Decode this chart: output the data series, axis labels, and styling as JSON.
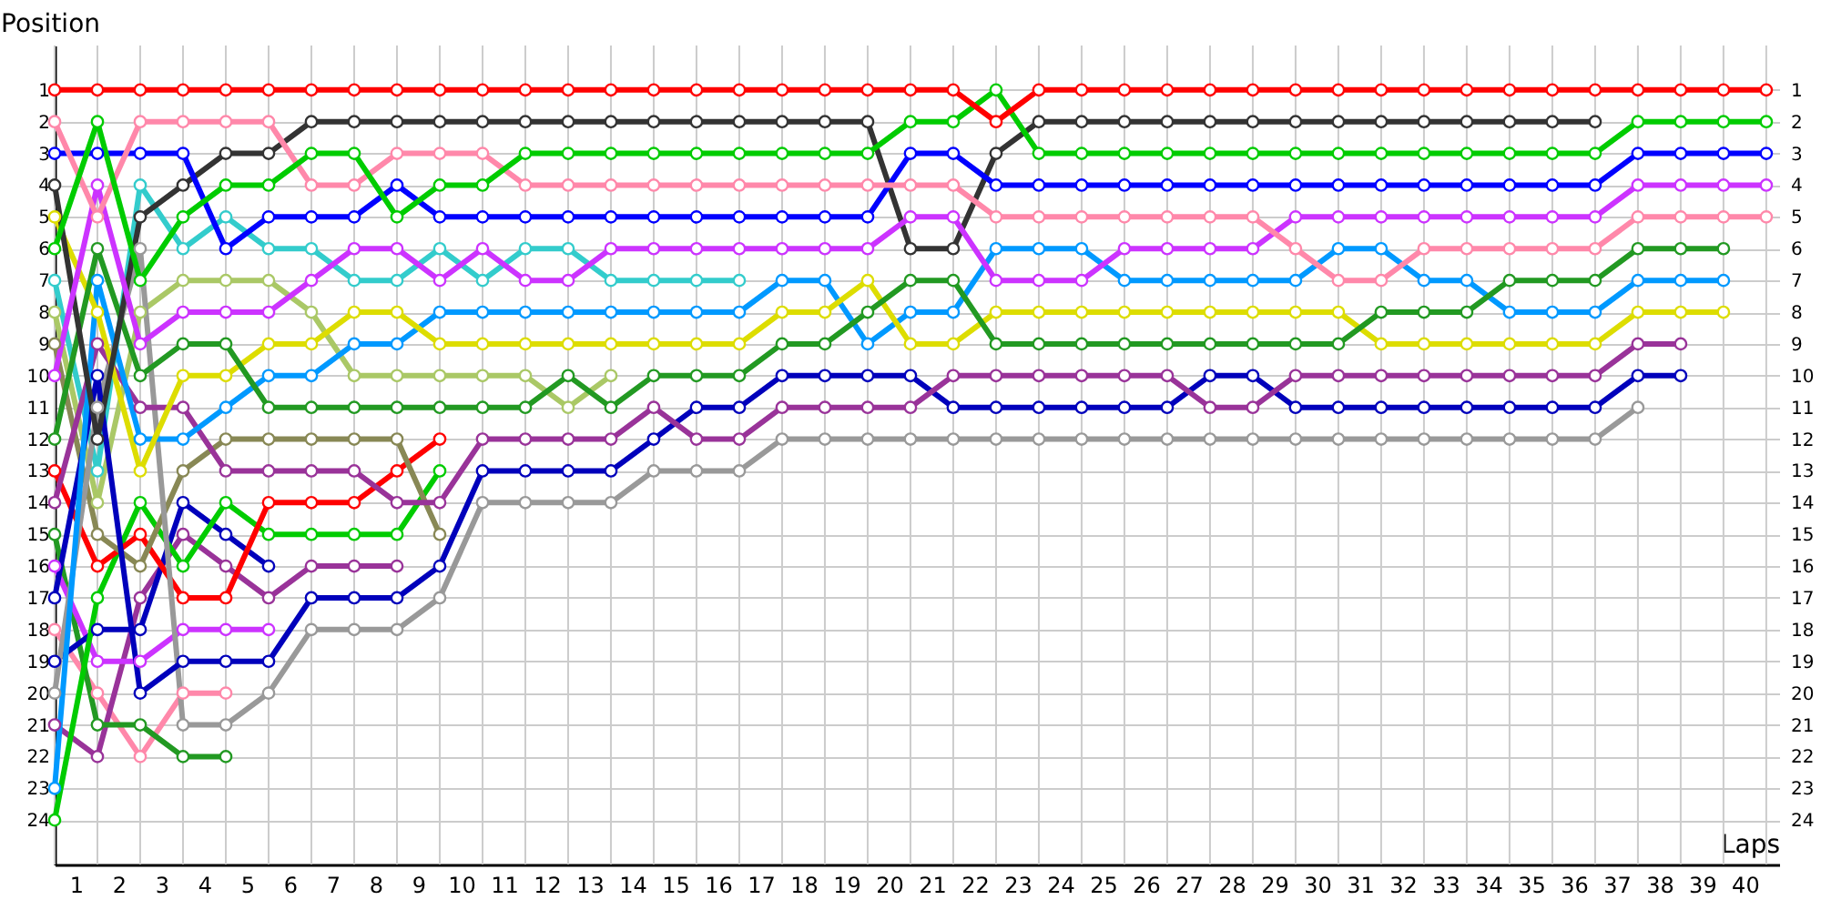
{
  "chart_data": {
    "type": "line",
    "xlabel": "Laps",
    "ylabel": "Position",
    "x": [
      0,
      1,
      2,
      3,
      4,
      5,
      6,
      7,
      8,
      9,
      10,
      11,
      12,
      13,
      14,
      15,
      16,
      17,
      18,
      19,
      20,
      21,
      22,
      23,
      24,
      25,
      26,
      27,
      28,
      29,
      30,
      31,
      32,
      33,
      34,
      35,
      36,
      37,
      38,
      39,
      40
    ],
    "xlim": [
      0,
      40.3
    ],
    "xticks": [
      {
        "value": 0,
        "label": null
      },
      {
        "value": 0.5,
        "label": "1"
      },
      {
        "value": 1,
        "label": null
      },
      {
        "value": 1.5,
        "label": "2"
      },
      {
        "value": 2,
        "label": null
      },
      {
        "value": 2.5,
        "label": "3"
      },
      {
        "value": 3,
        "label": null
      },
      {
        "value": 3.5,
        "label": "4"
      },
      {
        "value": 4,
        "label": null
      },
      {
        "value": 4.5,
        "label": "5"
      },
      {
        "value": 5,
        "label": null
      },
      {
        "value": 5.5,
        "label": "6"
      },
      {
        "value": 6,
        "label": null
      },
      {
        "value": 6.5,
        "label": "7"
      },
      {
        "value": 7,
        "label": null
      },
      {
        "value": 7.5,
        "label": "8"
      },
      {
        "value": 8,
        "label": null
      },
      {
        "value": 8.5,
        "label": "9"
      },
      {
        "value": 9,
        "label": null
      },
      {
        "value": 9.5,
        "label": "10"
      },
      {
        "value": 10,
        "label": null
      },
      {
        "value": 10.5,
        "label": "11"
      },
      {
        "value": 11,
        "label": null
      },
      {
        "value": 11.5,
        "label": "12"
      },
      {
        "value": 12,
        "label": null
      },
      {
        "value": 12.5,
        "label": "13"
      },
      {
        "value": 13,
        "label": null
      },
      {
        "value": 13.5,
        "label": "14"
      },
      {
        "value": 14,
        "label": null
      },
      {
        "value": 14.5,
        "label": "15"
      },
      {
        "value": 15,
        "label": null
      },
      {
        "value": 15.5,
        "label": "16"
      },
      {
        "value": 16,
        "label": null
      },
      {
        "value": 16.5,
        "label": "17"
      },
      {
        "value": 17,
        "label": null
      },
      {
        "value": 17.5,
        "label": "18"
      },
      {
        "value": 18,
        "label": null
      },
      {
        "value": 18.5,
        "label": "19"
      },
      {
        "value": 19,
        "label": null
      },
      {
        "value": 19.5,
        "label": "20"
      },
      {
        "value": 20,
        "label": null
      },
      {
        "value": 20.5,
        "label": "21"
      },
      {
        "value": 21,
        "label": null
      },
      {
        "value": 21.5,
        "label": "22"
      },
      {
        "value": 22,
        "label": null
      },
      {
        "value": 22.5,
        "label": "23"
      },
      {
        "value": 23,
        "label": null
      },
      {
        "value": 23.5,
        "label": "24"
      },
      {
        "value": 24,
        "label": null
      },
      {
        "value": 24.5,
        "label": "25"
      },
      {
        "value": 25,
        "label": null
      },
      {
        "value": 25.5,
        "label": "26"
      },
      {
        "value": 26,
        "label": null
      },
      {
        "value": 26.5,
        "label": "27"
      },
      {
        "value": 27,
        "label": null
      },
      {
        "value": 27.5,
        "label": "28"
      },
      {
        "value": 28,
        "label": null
      },
      {
        "value": 28.5,
        "label": "29"
      },
      {
        "value": 29,
        "label": null
      },
      {
        "value": 29.5,
        "label": "30"
      },
      {
        "value": 30,
        "label": null
      },
      {
        "value": 30.5,
        "label": "31"
      },
      {
        "value": 31,
        "label": null
      },
      {
        "value": 31.5,
        "label": "32"
      },
      {
        "value": 32,
        "label": null
      },
      {
        "value": 32.5,
        "label": "33"
      },
      {
        "value": 33,
        "label": null
      },
      {
        "value": 33.5,
        "label": "34"
      },
      {
        "value": 34,
        "label": null
      },
      {
        "value": 34.5,
        "label": "35"
      },
      {
        "value": 35,
        "label": null
      },
      {
        "value": 35.5,
        "label": "36"
      },
      {
        "value": 36,
        "label": null
      },
      {
        "value": 36.5,
        "label": "37"
      },
      {
        "value": 37,
        "label": null
      },
      {
        "value": 37.5,
        "label": "38"
      },
      {
        "value": 38,
        "label": null
      },
      {
        "value": 38.5,
        "label": "39"
      },
      {
        "value": 39,
        "label": null
      },
      {
        "value": 39.5,
        "label": "40"
      },
      {
        "value": 40,
        "label": null
      }
    ],
    "ylim": [
      25.4,
      -0.4
    ],
    "yticks": [
      1,
      2,
      3,
      4,
      5,
      6,
      7,
      8,
      9,
      10,
      11,
      12,
      13,
      14,
      15,
      16,
      17,
      18,
      19,
      20,
      21,
      22,
      23,
      24
    ],
    "y2lim": [
      25.4,
      -0.4
    ],
    "y2ticks": [
      1,
      2,
      3,
      4,
      5,
      6,
      7,
      8,
      9,
      10,
      11,
      12,
      13,
      14,
      15,
      16,
      17,
      18,
      19,
      20,
      21,
      22,
      23,
      24
    ],
    "grid": true,
    "legend": false,
    "marker": "circle",
    "line_style": "solid",
    "series": [
      {
        "color": "#ff88aa",
        "values": [
          18,
          20,
          22,
          20,
          20,
          null,
          null,
          null,
          null,
          null,
          null,
          null,
          null,
          null,
          null,
          null,
          null,
          null,
          null,
          null,
          null,
          null,
          null,
          null,
          null,
          null,
          null,
          null,
          null,
          null,
          null,
          null,
          null,
          null,
          null,
          null,
          null,
          null,
          null,
          null,
          null
        ]
      },
      {
        "color": "#993399",
        "values": [
          21,
          22,
          17,
          15,
          16,
          17,
          16,
          16,
          16,
          null,
          null,
          null,
          null,
          null,
          null,
          null,
          null,
          null,
          null,
          null,
          null,
          null,
          null,
          null,
          null,
          null,
          null,
          null,
          null,
          null,
          null,
          null,
          null,
          null,
          null,
          null,
          null,
          null,
          null,
          null,
          null
        ]
      },
      {
        "color": "#229922",
        "values": [
          15,
          21,
          21,
          22,
          22,
          null,
          null,
          null,
          null,
          null,
          null,
          null,
          null,
          null,
          null,
          null,
          null,
          null,
          null,
          null,
          null,
          null,
          null,
          null,
          null,
          null,
          null,
          null,
          null,
          null,
          null,
          null,
          null,
          null,
          null,
          null,
          null,
          null,
          null,
          null,
          null
        ]
      },
      {
        "color": "#cc33ff",
        "values": [
          16,
          19,
          19,
          18,
          18,
          18,
          null,
          null,
          null,
          null,
          null,
          null,
          null,
          null,
          null,
          null,
          null,
          null,
          null,
          null,
          null,
          null,
          null,
          null,
          null,
          null,
          null,
          null,
          null,
          null,
          null,
          null,
          null,
          null,
          null,
          null,
          null,
          null,
          null,
          null,
          null
        ]
      },
      {
        "color": "#0000bb",
        "values": [
          19,
          18,
          18,
          14,
          15,
          16,
          null,
          null,
          null,
          null,
          null,
          null,
          null,
          null,
          null,
          null,
          null,
          null,
          null,
          null,
          null,
          null,
          null,
          null,
          null,
          null,
          null,
          null,
          null,
          null,
          null,
          null,
          null,
          null,
          null,
          null,
          null,
          null,
          null,
          null,
          null
        ]
      },
      {
        "color": "#00cc00",
        "values": [
          24,
          17,
          14,
          16,
          14,
          15,
          15,
          15,
          15,
          13,
          null,
          null,
          null,
          null,
          null,
          null,
          null,
          null,
          null,
          null,
          null,
          null,
          null,
          null,
          null,
          null,
          null,
          null,
          null,
          null,
          null,
          null,
          null,
          null,
          null,
          null,
          null,
          null,
          null,
          null,
          null
        ]
      },
      {
        "color": "#ff0000",
        "values": [
          13,
          16,
          15,
          17,
          17,
          14,
          14,
          14,
          13,
          12,
          null,
          null,
          null,
          null,
          null,
          null,
          null,
          null,
          null,
          null,
          null,
          null,
          null,
          null,
          null,
          null,
          null,
          null,
          null,
          null,
          null,
          null,
          null,
          null,
          null,
          null,
          null,
          null,
          null,
          null,
          null
        ]
      },
      {
        "color": "#888855",
        "values": [
          9,
          15,
          16,
          13,
          12,
          12,
          12,
          12,
          12,
          15,
          null,
          null,
          null,
          null,
          null,
          null,
          null,
          null,
          null,
          null,
          null,
          null,
          null,
          null,
          null,
          null,
          null,
          null,
          null,
          null,
          null,
          null,
          null,
          null,
          null,
          null,
          null,
          null,
          null,
          null,
          null
        ]
      },
      {
        "color": "#aac866",
        "values": [
          8,
          14,
          8,
          7,
          7,
          7,
          8,
          10,
          10,
          10,
          10,
          10,
          11,
          10,
          null,
          null,
          null,
          null,
          null,
          null,
          null,
          null,
          null,
          null,
          null,
          null,
          null,
          null,
          null,
          null,
          null,
          null,
          null,
          null,
          null,
          null,
          null,
          null,
          null,
          null,
          null
        ]
      },
      {
        "color": "#33cccc",
        "values": [
          7,
          13,
          4,
          6,
          5,
          6,
          6,
          7,
          7,
          6,
          7,
          6,
          6,
          7,
          7,
          7,
          7,
          null,
          null,
          null,
          null,
          null,
          null,
          null,
          null,
          null,
          null,
          null,
          null,
          null,
          null,
          null,
          null,
          null,
          null,
          null,
          null,
          null,
          null,
          null,
          null
        ]
      },
      {
        "color": "#999999",
        "values": [
          20,
          11,
          6,
          21,
          21,
          20,
          18,
          18,
          18,
          17,
          14,
          14,
          14,
          14,
          13,
          13,
          13,
          12,
          12,
          12,
          12,
          12,
          12,
          12,
          12,
          12,
          12,
          12,
          12,
          12,
          12,
          12,
          12,
          12,
          12,
          12,
          12,
          11,
          null,
          null,
          null
        ]
      },
      {
        "color": "#0000bb",
        "values": [
          17,
          10,
          20,
          19,
          19,
          19,
          17,
          17,
          17,
          16,
          13,
          13,
          13,
          13,
          12,
          11,
          11,
          10,
          10,
          10,
          10,
          11,
          11,
          11,
          11,
          11,
          11,
          10,
          10,
          11,
          11,
          11,
          11,
          11,
          11,
          11,
          11,
          10,
          10,
          null,
          null
        ]
      },
      {
        "color": "#993399",
        "values": [
          14,
          9,
          11,
          11,
          13,
          13,
          13,
          13,
          14,
          14,
          12,
          12,
          12,
          12,
          11,
          12,
          12,
          11,
          11,
          11,
          11,
          10,
          10,
          10,
          10,
          10,
          10,
          11,
          11,
          10,
          10,
          10,
          10,
          10,
          10,
          10,
          10,
          9,
          9,
          null,
          null
        ]
      },
      {
        "color": "#0099ff",
        "values": [
          23,
          7,
          12,
          12,
          11,
          10,
          10,
          9,
          9,
          8,
          8,
          8,
          8,
          8,
          8,
          8,
          8,
          7,
          7,
          9,
          8,
          8,
          6,
          6,
          6,
          7,
          7,
          7,
          7,
          7,
          6,
          6,
          7,
          7,
          8,
          8,
          8,
          7,
          7,
          7,
          null
        ]
      },
      {
        "color": "#dddd00",
        "values": [
          5,
          8,
          13,
          10,
          10,
          9,
          9,
          8,
          8,
          9,
          9,
          9,
          9,
          9,
          9,
          9,
          9,
          8,
          8,
          7,
          9,
          9,
          8,
          8,
          8,
          8,
          8,
          8,
          8,
          8,
          8,
          9,
          9,
          9,
          9,
          9,
          9,
          8,
          8,
          8,
          null
        ]
      },
      {
        "color": "#229922",
        "values": [
          12,
          6,
          10,
          9,
          9,
          11,
          11,
          11,
          11,
          11,
          11,
          11,
          10,
          11,
          10,
          10,
          10,
          9,
          9,
          8,
          7,
          7,
          9,
          9,
          9,
          9,
          9,
          9,
          9,
          9,
          9,
          8,
          8,
          8,
          7,
          7,
          7,
          6,
          6,
          6,
          null
        ]
      },
      {
        "color": "#333333",
        "values": [
          4,
          12,
          5,
          4,
          3,
          3,
          2,
          2,
          2,
          2,
          2,
          2,
          2,
          2,
          2,
          2,
          2,
          2,
          2,
          2,
          6,
          6,
          3,
          2,
          2,
          2,
          2,
          2,
          2,
          2,
          2,
          2,
          2,
          2,
          2,
          2,
          2,
          null,
          null,
          null,
          null
        ]
      },
      {
        "color": "#cc33ff",
        "values": [
          10,
          4,
          9,
          8,
          8,
          8,
          7,
          6,
          6,
          7,
          6,
          7,
          7,
          6,
          6,
          6,
          6,
          6,
          6,
          6,
          5,
          5,
          7,
          7,
          7,
          6,
          6,
          6,
          6,
          5,
          5,
          5,
          5,
          5,
          5,
          5,
          5,
          4,
          4,
          4,
          4
        ]
      },
      {
        "color": "#0000ff",
        "values": [
          3,
          3,
          3,
          3,
          6,
          5,
          5,
          5,
          4,
          5,
          5,
          5,
          5,
          5,
          5,
          5,
          5,
          5,
          5,
          5,
          3,
          3,
          4,
          4,
          4,
          4,
          4,
          4,
          4,
          4,
          4,
          4,
          4,
          4,
          4,
          4,
          4,
          3,
          3,
          3,
          3
        ]
      },
      {
        "color": "#ff88aa",
        "values": [
          2,
          5,
          2,
          2,
          2,
          2,
          4,
          4,
          3,
          3,
          3,
          4,
          4,
          4,
          4,
          4,
          4,
          4,
          4,
          4,
          4,
          4,
          5,
          5,
          5,
          5,
          5,
          5,
          5,
          6,
          7,
          7,
          6,
          6,
          6,
          6,
          6,
          5,
          5,
          5,
          5
        ]
      },
      {
        "color": "#00cc00",
        "values": [
          6,
          2,
          7,
          5,
          4,
          4,
          3,
          3,
          5,
          4,
          4,
          3,
          3,
          3,
          3,
          3,
          3,
          3,
          3,
          3,
          2,
          2,
          1,
          3,
          3,
          3,
          3,
          3,
          3,
          3,
          3,
          3,
          3,
          3,
          3,
          3,
          3,
          2,
          2,
          2,
          2
        ]
      },
      {
        "color": "#ff0000",
        "values": [
          1,
          1,
          1,
          1,
          1,
          1,
          1,
          1,
          1,
          1,
          1,
          1,
          1,
          1,
          1,
          1,
          1,
          1,
          1,
          1,
          1,
          1,
          2,
          1,
          1,
          1,
          1,
          1,
          1,
          1,
          1,
          1,
          1,
          1,
          1,
          1,
          1,
          1,
          1,
          1,
          1
        ]
      }
    ]
  }
}
